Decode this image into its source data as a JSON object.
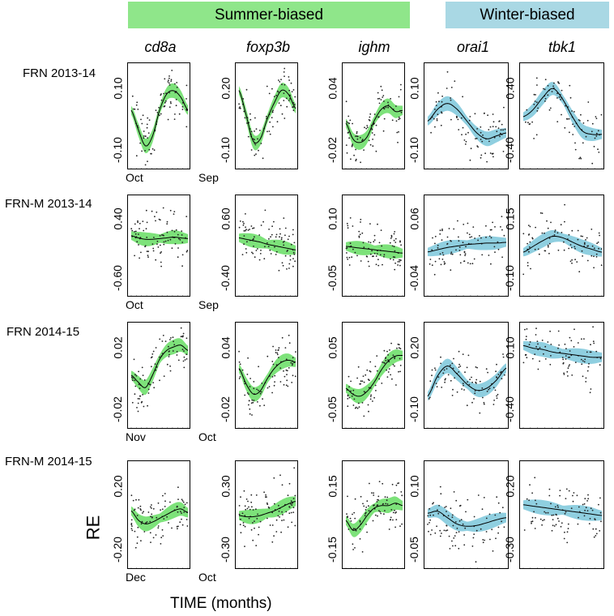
{
  "banners": {
    "summer": "Summer-biased",
    "winter": "Winter-biased"
  },
  "colors": {
    "summer": "#7de27a",
    "winter": "#8fcfe0",
    "line": "#000000",
    "points": "#222222"
  },
  "y_axis_label": "RE",
  "x_axis_label": "TIME (months)",
  "chart_data": {
    "type": "scatter",
    "genes": [
      {
        "name": "cd8a",
        "bias": "summer"
      },
      {
        "name": "foxp3b",
        "bias": "summer"
      },
      {
        "name": "ighm",
        "bias": "summer"
      },
      {
        "name": "orai1",
        "bias": "winter"
      },
      {
        "name": "tbk1",
        "bias": "winter"
      }
    ],
    "rows": [
      {
        "label": "FRN 2013-14",
        "month_start": "Oct",
        "month_end": "Sep",
        "panels": [
          {
            "gene": "cd8a",
            "yticks": [
              "0.10",
              "-0.10"
            ],
            "ylim": [
              -0.15,
              0.15
            ],
            "trend": [
              0.02,
              -0.04,
              -0.09,
              -0.06,
              0.02,
              0.07,
              0.08,
              0.06,
              0.02
            ]
          },
          {
            "gene": "foxp3b",
            "yticks": [
              "0.20",
              "-0.10"
            ],
            "ylim": [
              -0.2,
              0.28
            ],
            "trend": [
              0.17,
              0.05,
              -0.08,
              -0.07,
              0.03,
              0.11,
              0.17,
              0.15,
              0.08
            ]
          },
          {
            "gene": "ighm",
            "yticks": [
              "0.04",
              "-0.02"
            ],
            "ylim": [
              -0.035,
              0.05
            ],
            "trend": [
              0.002,
              -0.012,
              -0.015,
              -0.01,
              0.004,
              0.014,
              0.017,
              0.012,
              0.013
            ]
          },
          {
            "gene": "orai1",
            "yticks": [
              "0.10",
              "-0.10"
            ],
            "ylim": [
              -0.15,
              0.18
            ],
            "trend": [
              0.0,
              0.04,
              0.06,
              0.04,
              0.0,
              -0.04,
              -0.06,
              -0.05,
              -0.04
            ]
          },
          {
            "gene": "tbk1",
            "yticks": [
              "0.40",
              "-0.40"
            ],
            "ylim": [
              -0.55,
              0.55
            ],
            "trend": [
              0.0,
              0.08,
              0.22,
              0.32,
              0.2,
              0.0,
              -0.16,
              -0.2,
              -0.2
            ]
          }
        ]
      },
      {
        "label": "FRN-M 2013-14",
        "month_start": "Oct",
        "month_end": "Sep",
        "panels": [
          {
            "gene": "cd8a",
            "yticks": [
              "0.40",
              "-0.60"
            ],
            "ylim": [
              -0.75,
              0.55
            ],
            "trend": [
              0.05,
              0.02,
              0.0,
              0.0,
              0.01,
              0.02,
              0.03,
              0.02,
              0.01
            ]
          },
          {
            "gene": "foxp3b",
            "yticks": [
              "0.60",
              "-0.40"
            ],
            "ylim": [
              -0.55,
              0.75
            ],
            "trend": [
              0.22,
              0.2,
              0.18,
              0.16,
              0.13,
              0.11,
              0.09,
              0.07,
              0.05
            ]
          },
          {
            "gene": "ighm",
            "yticks": [
              "0.10",
              "-0.05"
            ],
            "ylim": [
              -0.09,
              0.13
            ],
            "trend": [
              0.02,
              0.018,
              0.016,
              0.014,
              0.012,
              0.01,
              0.008,
              0.006,
              0.004
            ]
          },
          {
            "gene": "orai1",
            "yticks": [
              "0.06",
              "-0.04"
            ],
            "ylim": [
              -0.055,
              0.07
            ],
            "trend": [
              0.0,
              0.003,
              0.006,
              0.008,
              0.01,
              0.011,
              0.012,
              0.012,
              0.013
            ]
          },
          {
            "gene": "tbk1",
            "yticks": [
              "0.15",
              "-0.10"
            ],
            "ylim": [
              -0.14,
              0.18
            ],
            "trend": [
              0.0,
              0.02,
              0.04,
              0.055,
              0.05,
              0.035,
              0.02,
              0.01,
              0.0
            ]
          }
        ]
      },
      {
        "label": "FRN 2014-15",
        "month_start": "Nov",
        "month_end": "Oct",
        "panels": [
          {
            "gene": "cd8a",
            "yticks": [
              "0.02",
              "-0.02"
            ],
            "ylim": [
              -0.03,
              0.025
            ],
            "trend": [
              -0.002,
              -0.006,
              -0.009,
              -0.002,
              0.007,
              0.012,
              0.014,
              0.015,
              0.012
            ]
          },
          {
            "gene": "foxp3b",
            "yticks": [
              "0.04",
              "-0.02"
            ],
            "ylim": [
              -0.045,
              0.05
            ],
            "trend": [
              0.01,
              -0.005,
              -0.015,
              -0.012,
              0.0,
              0.01,
              0.016,
              0.018,
              0.016
            ]
          },
          {
            "gene": "ighm",
            "yticks": [
              "0.05",
              "-0.05"
            ],
            "ylim": [
              -0.08,
              0.08
            ],
            "trend": [
              -0.02,
              -0.03,
              -0.033,
              -0.025,
              -0.01,
              0.01,
              0.025,
              0.033,
              0.034
            ]
          },
          {
            "gene": "orai1",
            "yticks": [
              "0.20",
              "-0.10"
            ],
            "ylim": [
              -0.2,
              0.28
            ],
            "trend": [
              -0.06,
              0.04,
              0.09,
              0.05,
              0.0,
              -0.03,
              -0.02,
              0.02,
              0.08
            ]
          },
          {
            "gene": "tbk1",
            "yticks": [
              "0.10",
              "-0.40"
            ],
            "ylim": [
              -0.55,
              0.2
            ],
            "trend": [
              0.06,
              0.04,
              0.03,
              0.01,
              0.0,
              -0.01,
              -0.02,
              -0.03,
              -0.03
            ]
          }
        ]
      },
      {
        "label": "FRN-M 2014-15",
        "month_start": "Dec",
        "month_end": "Oct",
        "panels": [
          {
            "gene": "cd8a",
            "yticks": [
              "0.20",
              "-0.20"
            ],
            "ylim": [
              -0.25,
              0.28
            ],
            "trend": [
              0.04,
              -0.01,
              -0.03,
              -0.02,
              0.0,
              0.02,
              0.04,
              0.05,
              0.03
            ]
          },
          {
            "gene": "foxp3b",
            "yticks": [
              "0.30",
              "-0.30"
            ],
            "ylim": [
              -0.42,
              0.42
            ],
            "trend": [
              0.0,
              -0.01,
              -0.01,
              0.0,
              0.02,
              0.04,
              0.07,
              0.1,
              0.12
            ]
          },
          {
            "gene": "ighm",
            "yticks": [
              "0.15",
              "-0.15"
            ],
            "ylim": [
              -0.2,
              0.2
            ],
            "trend": [
              -0.02,
              -0.06,
              -0.04,
              0.0,
              0.03,
              0.04,
              0.04,
              0.05,
              0.04
            ]
          },
          {
            "gene": "orai1",
            "yticks": [
              "0.10",
              "-0.05"
            ],
            "ylim": [
              -0.09,
              0.14
            ],
            "trend": [
              0.03,
              0.035,
              0.02,
              0.005,
              0.0,
              0.002,
              0.008,
              0.015,
              0.02
            ]
          },
          {
            "gene": "tbk1",
            "yticks": [
              "0.20",
              "-0.30"
            ],
            "ylim": [
              -0.42,
              0.32
            ],
            "trend": [
              0.03,
              0.02,
              0.01,
              0.0,
              -0.01,
              -0.02,
              -0.03,
              -0.04,
              -0.05
            ]
          }
        ]
      }
    ]
  }
}
